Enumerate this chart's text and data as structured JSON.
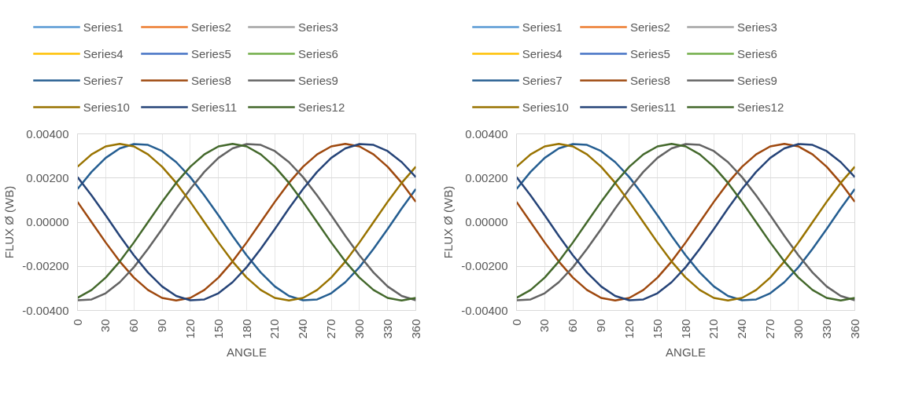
{
  "chart_data": [
    {
      "type": "line",
      "xlabel": "ANGLE",
      "ylabel": "FLUX Ø (WB)",
      "legend": "top",
      "grid": true,
      "x": [
        0,
        15,
        30,
        45,
        60,
        75,
        90,
        105,
        120,
        135,
        150,
        165,
        180,
        195,
        210,
        225,
        240,
        255,
        270,
        285,
        300,
        315,
        330,
        345,
        360
      ],
      "xlim": [
        0,
        360
      ],
      "xticks": [
        0,
        30,
        60,
        90,
        120,
        150,
        180,
        210,
        240,
        270,
        300,
        330,
        360
      ],
      "ylim": [
        -0.004,
        0.004
      ],
      "yticks": [
        {
          "value": -0.004,
          "label": "-0.00400"
        },
        {
          "value": -0.002,
          "label": "-0.00200"
        },
        {
          "value": 0,
          "label": "0.00000"
        },
        {
          "value": 0.002,
          "label": "0.00200"
        },
        {
          "value": 0.004,
          "label": "0.00400"
        }
      ],
      "series": [
        {
          "name": "Series1",
          "color": "#5b9bd5",
          "values": [
            null,
            null,
            null,
            null,
            null,
            null,
            null,
            null,
            null,
            null,
            null,
            null,
            null,
            null,
            null,
            null,
            null,
            null,
            null,
            null,
            null,
            null,
            null,
            null,
            null
          ]
        },
        {
          "name": "Series2",
          "color": "#ed7d31",
          "values": [
            null,
            null,
            null,
            null,
            null,
            null,
            null,
            null,
            null,
            null,
            null,
            null,
            null,
            null,
            null,
            null,
            null,
            null,
            null,
            null,
            null,
            null,
            null,
            null,
            null
          ]
        },
        {
          "name": "Series3",
          "color": "#a5a5a5",
          "values": [
            null,
            null,
            null,
            null,
            null,
            null,
            null,
            null,
            null,
            null,
            null,
            null,
            null,
            null,
            null,
            null,
            null,
            null,
            null,
            null,
            null,
            null,
            null,
            null,
            null
          ]
        },
        {
          "name": "Series4",
          "color": "#ffc000",
          "values": [
            null,
            null,
            null,
            null,
            null,
            null,
            null,
            null,
            null,
            null,
            null,
            null,
            null,
            null,
            null,
            null,
            null,
            null,
            null,
            null,
            null,
            null,
            null,
            null,
            null
          ]
        },
        {
          "name": "Series5",
          "color": "#4472c4",
          "values": [
            null,
            null,
            null,
            null,
            null,
            null,
            null,
            null,
            null,
            null,
            null,
            null,
            null,
            null,
            null,
            null,
            null,
            null,
            null,
            null,
            null,
            null,
            null,
            null,
            null
          ]
        },
        {
          "name": "Series6",
          "color": "#70ad47",
          "values": [
            null,
            null,
            null,
            null,
            null,
            null,
            null,
            null,
            null,
            null,
            null,
            null,
            null,
            null,
            null,
            null,
            null,
            null,
            null,
            null,
            null,
            null,
            null,
            null,
            null
          ]
        },
        {
          "name": "Series7",
          "color": "#255e91",
          "values": [
            0.0015,
            0.00228,
            0.00291,
            0.00334,
            0.00354,
            0.0035,
            0.00322,
            0.00272,
            0.00204,
            0.00121,
            0.00031,
            -0.00062,
            -0.0015,
            -0.00228,
            -0.00291,
            -0.00334,
            -0.00354,
            -0.0035,
            -0.00322,
            -0.00272,
            -0.00204,
            -0.00121,
            -0.00031,
            0.00062,
            0.0015
          ]
        },
        {
          "name": "Series8",
          "color": "#9e480e",
          "values": [
            0.00092,
            0,
            -0.00092,
            -0.00178,
            -0.00251,
            -0.00307,
            -0.00343,
            -0.00355,
            -0.00343,
            -0.00307,
            -0.00251,
            -0.00178,
            -0.00092,
            0,
            0.00092,
            0.00178,
            0.00251,
            0.00307,
            0.00343,
            0.00355,
            0.00343,
            0.00307,
            0.00251,
            0.00178,
            0.00092
          ]
        },
        {
          "name": "Series9",
          "color": "#636363",
          "values": [
            -0.00354,
            -0.0035,
            -0.00322,
            -0.00272,
            -0.00204,
            -0.00121,
            -0.00031,
            0.00062,
            0.0015,
            0.00228,
            0.00291,
            0.00334,
            0.00354,
            0.0035,
            0.00322,
            0.00272,
            0.00204,
            0.00121,
            0.00031,
            -0.00062,
            -0.0015,
            -0.00228,
            -0.00291,
            -0.00334,
            -0.00354
          ]
        },
        {
          "name": "Series10",
          "color": "#997300",
          "values": [
            0.00251,
            0.00307,
            0.00343,
            0.00355,
            0.00343,
            0.00307,
            0.00251,
            0.00178,
            0.00092,
            0,
            -0.00092,
            -0.00178,
            -0.00251,
            -0.00307,
            -0.00343,
            -0.00355,
            -0.00343,
            -0.00307,
            -0.00251,
            -0.00178,
            -0.00092,
            0,
            0.00092,
            0.00178,
            0.00251
          ]
        },
        {
          "name": "Series11",
          "color": "#264478",
          "values": [
            0.00204,
            0.00121,
            0.00031,
            -0.00062,
            -0.0015,
            -0.00228,
            -0.00291,
            -0.00334,
            -0.00354,
            -0.0035,
            -0.00322,
            -0.00272,
            -0.00204,
            -0.00121,
            -0.00031,
            0.00062,
            0.0015,
            0.00228,
            0.00291,
            0.00334,
            0.00354,
            0.0035,
            0.00322,
            0.00272,
            0.00204
          ]
        },
        {
          "name": "Series12",
          "color": "#43682b",
          "values": [
            -0.00343,
            -0.00307,
            -0.00251,
            -0.00178,
            -0.00092,
            0,
            0.00092,
            0.00178,
            0.00251,
            0.00307,
            0.00343,
            0.00355,
            0.00343,
            0.00307,
            0.00251,
            0.00178,
            0.00092,
            0,
            -0.00092,
            -0.00178,
            -0.00251,
            -0.00307,
            -0.00343,
            -0.00355,
            -0.00343
          ]
        }
      ]
    },
    {
      "type": "line",
      "xlabel": "ANGLE",
      "ylabel": "FLUX Ø (WB)",
      "legend": "top",
      "grid": true,
      "x": [
        0,
        15,
        30,
        45,
        60,
        75,
        90,
        105,
        120,
        135,
        150,
        165,
        180,
        195,
        210,
        225,
        240,
        255,
        270,
        285,
        300,
        315,
        330,
        345,
        360
      ],
      "xlim": [
        0,
        360
      ],
      "xticks": [
        0,
        30,
        60,
        90,
        120,
        150,
        180,
        210,
        240,
        270,
        300,
        330,
        360
      ],
      "ylim": [
        -0.004,
        0.004
      ],
      "yticks": [
        {
          "value": -0.004,
          "label": "-0.00400"
        },
        {
          "value": -0.002,
          "label": "-0.00200"
        },
        {
          "value": 0,
          "label": "0.00000"
        },
        {
          "value": 0.002,
          "label": "0.00200"
        },
        {
          "value": 0.004,
          "label": "0.00400"
        }
      ],
      "series": [
        {
          "name": "Series1",
          "color": "#5b9bd5",
          "values": [
            null,
            null,
            null,
            null,
            null,
            null,
            null,
            null,
            null,
            null,
            null,
            null,
            null,
            null,
            null,
            null,
            null,
            null,
            null,
            null,
            null,
            null,
            null,
            null,
            null
          ]
        },
        {
          "name": "Series2",
          "color": "#ed7d31",
          "values": [
            null,
            null,
            null,
            null,
            null,
            null,
            null,
            null,
            null,
            null,
            null,
            null,
            null,
            null,
            null,
            null,
            null,
            null,
            null,
            null,
            null,
            null,
            null,
            null,
            null
          ]
        },
        {
          "name": "Series3",
          "color": "#a5a5a5",
          "values": [
            null,
            null,
            null,
            null,
            null,
            null,
            null,
            null,
            null,
            null,
            null,
            null,
            null,
            null,
            null,
            null,
            null,
            null,
            null,
            null,
            null,
            null,
            null,
            null,
            null
          ]
        },
        {
          "name": "Series4",
          "color": "#ffc000",
          "values": [
            null,
            null,
            null,
            null,
            null,
            null,
            null,
            null,
            null,
            null,
            null,
            null,
            null,
            null,
            null,
            null,
            null,
            null,
            null,
            null,
            null,
            null,
            null,
            null,
            null
          ]
        },
        {
          "name": "Series5",
          "color": "#4472c4",
          "values": [
            null,
            null,
            null,
            null,
            null,
            null,
            null,
            null,
            null,
            null,
            null,
            null,
            null,
            null,
            null,
            null,
            null,
            null,
            null,
            null,
            null,
            null,
            null,
            null,
            null
          ]
        },
        {
          "name": "Series6",
          "color": "#70ad47",
          "values": [
            null,
            null,
            null,
            null,
            null,
            null,
            null,
            null,
            null,
            null,
            null,
            null,
            null,
            null,
            null,
            null,
            null,
            null,
            null,
            null,
            null,
            null,
            null,
            null,
            null
          ]
        },
        {
          "name": "Series7",
          "color": "#255e91",
          "values": [
            0.0015,
            0.00228,
            0.00291,
            0.00334,
            0.00354,
            0.0035,
            0.00322,
            0.00272,
            0.00204,
            0.00121,
            0.00031,
            -0.00062,
            -0.0015,
            -0.00228,
            -0.00291,
            -0.00334,
            -0.00354,
            -0.0035,
            -0.00322,
            -0.00272,
            -0.00204,
            -0.00121,
            -0.00031,
            0.00062,
            0.0015
          ]
        },
        {
          "name": "Series8",
          "color": "#9e480e",
          "values": [
            0.00092,
            0,
            -0.00092,
            -0.00178,
            -0.00251,
            -0.00307,
            -0.00343,
            -0.00355,
            -0.00343,
            -0.00307,
            -0.00251,
            -0.00178,
            -0.00092,
            0,
            0.00092,
            0.00178,
            0.00251,
            0.00307,
            0.00343,
            0.00355,
            0.00343,
            0.00307,
            0.00251,
            0.00178,
            0.00092
          ]
        },
        {
          "name": "Series9",
          "color": "#636363",
          "values": [
            -0.00354,
            -0.0035,
            -0.00322,
            -0.00272,
            -0.00204,
            -0.00121,
            -0.00031,
            0.00062,
            0.0015,
            0.00228,
            0.00291,
            0.00334,
            0.00354,
            0.0035,
            0.00322,
            0.00272,
            0.00204,
            0.00121,
            0.00031,
            -0.00062,
            -0.0015,
            -0.00228,
            -0.00291,
            -0.00334,
            -0.00354
          ]
        },
        {
          "name": "Series10",
          "color": "#997300",
          "values": [
            0.00251,
            0.00307,
            0.00343,
            0.00355,
            0.00343,
            0.00307,
            0.00251,
            0.00178,
            0.00092,
            0,
            -0.00092,
            -0.00178,
            -0.00251,
            -0.00307,
            -0.00343,
            -0.00355,
            -0.00343,
            -0.00307,
            -0.00251,
            -0.00178,
            -0.00092,
            0,
            0.00092,
            0.00178,
            0.00251
          ]
        },
        {
          "name": "Series11",
          "color": "#264478",
          "values": [
            0.00204,
            0.00121,
            0.00031,
            -0.00062,
            -0.0015,
            -0.00228,
            -0.00291,
            -0.00334,
            -0.00354,
            -0.0035,
            -0.00322,
            -0.00272,
            -0.00204,
            -0.00121,
            -0.00031,
            0.00062,
            0.0015,
            0.00228,
            0.00291,
            0.00334,
            0.00354,
            0.0035,
            0.00322,
            0.00272,
            0.00204
          ]
        },
        {
          "name": "Series12",
          "color": "#43682b",
          "values": [
            -0.00343,
            -0.00307,
            -0.00251,
            -0.00178,
            -0.00092,
            0,
            0.00092,
            0.00178,
            0.00251,
            0.00307,
            0.00343,
            0.00355,
            0.00343,
            0.00307,
            0.00251,
            0.00178,
            0.00092,
            0,
            -0.00092,
            -0.00178,
            -0.00251,
            -0.00307,
            -0.00343,
            -0.00355,
            -0.00343
          ]
        }
      ]
    }
  ]
}
